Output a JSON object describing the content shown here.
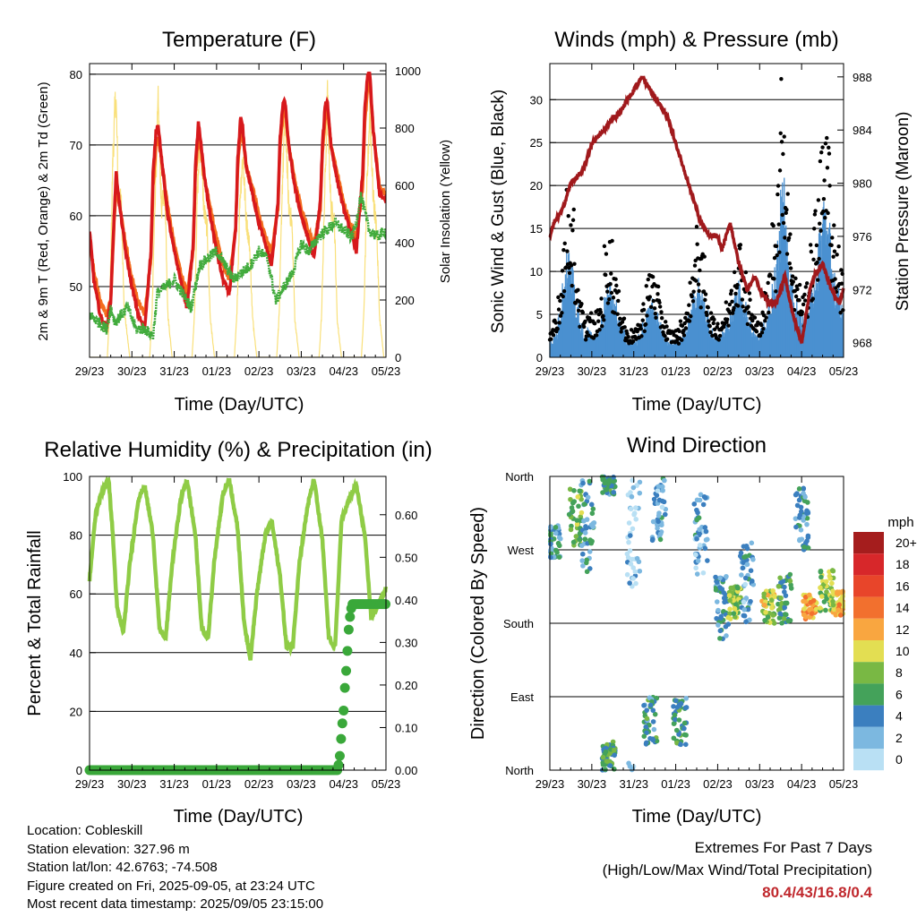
{
  "colors": {
    "temp_2m": "#d7191c",
    "temp_9m": "#f46d1e",
    "dewpoint": "#41ab3c",
    "solar": "#f9e07a",
    "wind": "#4a90d0",
    "gust": "#000000",
    "pressure": "#a0191c",
    "rh": "#8fcc46",
    "precip": "#3aa83a",
    "extremes": "#c0282d"
  },
  "info": {
    "location": "Location: Cobleskill",
    "elevation": "Station elevation: 327.96 m",
    "latlon": "Station lat/lon: 42.6763; -74.508",
    "created": "Figure created on Fri, 2025-09-05, at 23:24 UTC",
    "recent": "Most recent data timestamp: 2025/09/05 23:15:00"
  },
  "extremes": {
    "title": "Extremes For Past 7 Days",
    "subtitle": "(High/Low/Max Wind/Total Precipitation)",
    "values": "80.4/43/16.8/0.4"
  },
  "chart_data": [
    {
      "type": "line",
      "title": "Temperature (F)",
      "xlabel": "Time (Day/UTC)",
      "ylabel": "2m & 9m T (Red, Orange) & 2m Td (Green)",
      "y2label": "Solar Insolation (Yellow)",
      "x_ticks": [
        "29/23",
        "30/23",
        "31/23",
        "01/23",
        "02/23",
        "03/23",
        "04/23",
        "05/23"
      ],
      "y_ticks": [
        "50",
        "60",
        "70",
        "80"
      ],
      "y2_ticks": [
        "0",
        "200",
        "400",
        "600",
        "800",
        "1000"
      ],
      "ylim": [
        40,
        81.5
      ],
      "y2lim": [
        0,
        1025
      ],
      "x_days": [
        0,
        7
      ],
      "grid": "horizontal at labeled ticks",
      "series": [
        {
          "key": "t2m",
          "x": [
            0,
            0.1,
            0.25,
            0.4,
            0.5,
            0.58,
            0.63,
            0.7,
            0.85,
            1.0,
            1.15,
            1.3,
            1.45,
            1.5,
            1.57,
            1.62,
            1.7,
            1.85,
            2.0,
            2.15,
            2.3,
            2.45,
            2.5,
            2.57,
            2.62,
            2.7,
            2.85,
            3.0,
            3.15,
            3.3,
            3.45,
            3.5,
            3.57,
            3.62,
            3.7,
            3.85,
            4.0,
            4.15,
            4.3,
            4.45,
            4.5,
            4.57,
            4.62,
            4.7,
            4.85,
            5.0,
            5.15,
            5.3,
            5.45,
            5.5,
            5.57,
            5.62,
            5.7,
            5.85,
            6.0,
            6.15,
            6.3,
            6.45,
            6.5,
            6.57,
            6.62,
            6.7,
            6.85,
            7.0
          ],
          "y": [
            58,
            51,
            46,
            44,
            48,
            60,
            66,
            62,
            55,
            50,
            46,
            44,
            55,
            66,
            72,
            73,
            68,
            60,
            55,
            51,
            47,
            56,
            67,
            73,
            71,
            66,
            60,
            55,
            51,
            49,
            58,
            68,
            74,
            72,
            67,
            63,
            59,
            56,
            53,
            62,
            71,
            76,
            76,
            70,
            64,
            60,
            57,
            54,
            62,
            70,
            76,
            76,
            70,
            65,
            61,
            58,
            55,
            66,
            75,
            80,
            80,
            72,
            63,
            62
          ]
        },
        {
          "key": "t9m",
          "x": [
            0,
            0.1,
            0.25,
            0.4,
            0.5,
            0.58,
            0.63,
            0.7,
            0.85,
            1.0,
            1.15,
            1.3,
            1.45,
            1.5,
            1.57,
            1.62,
            1.7,
            1.85,
            2.0,
            2.15,
            2.3,
            2.45,
            2.5,
            2.57,
            2.62,
            2.7,
            2.85,
            3.0,
            3.15,
            3.3,
            3.45,
            3.5,
            3.57,
            3.62,
            3.7,
            3.85,
            4.0,
            4.15,
            4.3,
            4.45,
            4.5,
            4.57,
            4.62,
            4.7,
            4.85,
            5.0,
            5.15,
            5.3,
            5.45,
            5.5,
            5.57,
            5.62,
            5.7,
            5.85,
            6.0,
            6.15,
            6.3,
            6.45,
            6.5,
            6.57,
            6.62,
            6.7,
            6.85,
            7.0
          ],
          "y": [
            57,
            52,
            48,
            46,
            48,
            59,
            64,
            62,
            56,
            51,
            48,
            46,
            54,
            64,
            70,
            71,
            68,
            61,
            56,
            52,
            49,
            55,
            66,
            71,
            70,
            66,
            61,
            57,
            53,
            51,
            58,
            67,
            72,
            71,
            67,
            64,
            60,
            57,
            55,
            61,
            70,
            74,
            75,
            70,
            65,
            61,
            58,
            56,
            61,
            69,
            74,
            75,
            70,
            66,
            62,
            59,
            57,
            64,
            73,
            78,
            79,
            72,
            64,
            63
          ]
        },
        {
          "key": "td",
          "x": [
            0,
            0.2,
            0.4,
            0.5,
            0.6,
            0.75,
            0.9,
            1.1,
            1.3,
            1.5,
            1.6,
            1.8,
            2.0,
            2.2,
            2.4,
            2.6,
            2.8,
            3.0,
            3.2,
            3.4,
            3.6,
            3.8,
            4.0,
            4.2,
            4.4,
            4.6,
            4.8,
            5.0,
            5.2,
            5.4,
            5.6,
            5.8,
            6.0,
            6.2,
            6.3,
            6.4,
            6.6,
            6.8,
            7.0
          ],
          "y": [
            46,
            45,
            44,
            47,
            45,
            46,
            47,
            44,
            44,
            43,
            49,
            50,
            51,
            49,
            47,
            53,
            54,
            55,
            53,
            51,
            52,
            53,
            55,
            54,
            48,
            50,
            52,
            56,
            55,
            57,
            58,
            59,
            58,
            57,
            59,
            63,
            58,
            57,
            58
          ]
        },
        {
          "key": "solar",
          "x": [
            0,
            0.42,
            0.48,
            0.55,
            0.62,
            0.68,
            0.75,
            0.82,
            0.95,
            1.42,
            1.48,
            1.55,
            1.62,
            1.7,
            1.78,
            1.85,
            1.95,
            2.42,
            2.48,
            2.55,
            2.62,
            2.7,
            2.78,
            2.85,
            2.95,
            3.42,
            3.48,
            3.55,
            3.62,
            3.7,
            3.78,
            3.85,
            3.95,
            4.42,
            4.48,
            4.55,
            4.62,
            4.7,
            4.78,
            4.85,
            4.95,
            5.42,
            5.48,
            5.55,
            5.62,
            5.7,
            5.78,
            5.85,
            5.95,
            6.42,
            6.48,
            6.55,
            6.62,
            6.7,
            6.78,
            6.85,
            6.95,
            7.0
          ],
          "y": [
            0,
            0,
            200,
            750,
            1000,
            620,
            580,
            180,
            0,
            0,
            180,
            620,
            950,
            560,
            640,
            160,
            0,
            0,
            170,
            640,
            820,
            560,
            480,
            150,
            0,
            0,
            160,
            600,
            760,
            520,
            420,
            150,
            0,
            0,
            170,
            640,
            920,
            580,
            500,
            140,
            0,
            0,
            160,
            600,
            980,
            560,
            520,
            140,
            0,
            0,
            170,
            640,
            940,
            600,
            480,
            150,
            0,
            0
          ]
        }
      ]
    },
    {
      "type": "scatter",
      "title": "Winds (mph) & Pressure (mb)",
      "xlabel": "Time (Day/UTC)",
      "ylabel": "Sonic Wind & Gust (Blue, Black)",
      "y2label": "Station Pressure (Maroon)",
      "x_ticks": [
        "29/23",
        "30/23",
        "31/23",
        "01/23",
        "02/23",
        "03/23",
        "04/23",
        "05/23"
      ],
      "y_ticks": [
        "0",
        "5",
        "10",
        "15",
        "20",
        "25",
        "30"
      ],
      "y2_ticks": [
        "968",
        "972",
        "976",
        "980",
        "984",
        "988"
      ],
      "ylim": [
        0,
        34.2
      ],
      "y2lim": [
        966.9,
        989
      ],
      "grid": "horizontal at labeled ticks",
      "gust_by_day": [
        [
          3,
          4,
          8,
          14,
          18,
          16,
          10,
          6,
          4,
          5
        ],
        [
          4,
          5,
          7,
          12,
          13,
          10,
          7,
          5,
          3,
          3
        ],
        [
          3,
          4,
          6,
          9,
          10,
          8,
          6,
          4,
          3,
          3
        ],
        [
          3,
          4,
          5,
          8,
          12,
          14,
          11,
          8,
          5,
          4
        ],
        [
          4,
          5,
          6,
          9,
          12,
          13,
          10,
          7,
          5,
          4
        ],
        [
          5,
          7,
          10,
          15,
          22,
          30,
          22,
          14,
          10,
          8
        ],
        [
          7,
          9,
          12,
          16,
          22,
          28,
          24,
          16,
          12,
          10
        ]
      ],
      "pressure": {
        "x": [
          0,
          0.1,
          0.3,
          0.5,
          0.8,
          1.0,
          1.3,
          1.5,
          1.6,
          1.8,
          2.0,
          2.2,
          2.4,
          2.6,
          2.8,
          3.0,
          3.2,
          3.4,
          3.6,
          3.8,
          4.0,
          4.1,
          4.3,
          4.5,
          4.7,
          4.9,
          5.0,
          5.2,
          5.4,
          5.6,
          5.8,
          6.0,
          6.2,
          6.3,
          6.5,
          6.7,
          6.9,
          7.0
        ],
        "y": [
          976,
          977,
          978,
          980,
          981,
          983,
          984,
          985,
          985,
          986,
          987,
          988,
          987,
          986,
          985,
          983,
          981,
          979,
          977,
          976,
          976,
          975,
          977,
          974,
          972,
          973,
          972,
          971,
          971,
          973,
          970,
          968,
          972,
          973,
          974,
          972,
          971,
          972
        ]
      }
    },
    {
      "type": "line",
      "title": "Relative Humidity (%) & Precipitation (in)",
      "xlabel": "Time (Day/UTC)",
      "ylabel": "Percent & Total Rainfall",
      "x_ticks": [
        "29/23",
        "30/23",
        "31/23",
        "01/23",
        "02/23",
        "03/23",
        "04/23",
        "05/23"
      ],
      "y_ticks": [
        "0",
        "20",
        "40",
        "60",
        "80",
        "100"
      ],
      "y2_ticks": [
        "0.00",
        "0.10",
        "0.20",
        "0.30",
        "0.40",
        "0.50",
        "0.60"
      ],
      "ylim": [
        0,
        100
      ],
      "y2lim": [
        0,
        0.69
      ],
      "grid": "horizontal at labeled ticks",
      "series": [
        {
          "key": "rh",
          "x": [
            0,
            0.15,
            0.3,
            0.45,
            0.55,
            0.65,
            0.8,
            0.95,
            1.15,
            1.3,
            1.5,
            1.65,
            1.8,
            1.95,
            2.15,
            2.3,
            2.5,
            2.65,
            2.8,
            2.95,
            3.15,
            3.3,
            3.5,
            3.65,
            3.8,
            3.95,
            4.15,
            4.3,
            4.5,
            4.65,
            4.8,
            4.95,
            5.15,
            5.3,
            5.5,
            5.65,
            5.8,
            5.95,
            6.15,
            6.3,
            6.5,
            6.65,
            6.8,
            6.95,
            7.0
          ],
          "y": [
            65,
            88,
            95,
            99,
            80,
            55,
            47,
            70,
            92,
            97,
            80,
            48,
            45,
            70,
            92,
            99,
            80,
            48,
            45,
            72,
            94,
            99,
            82,
            50,
            38,
            60,
            80,
            85,
            66,
            42,
            42,
            70,
            90,
            99,
            78,
            45,
            42,
            85,
            93,
            97,
            80,
            52,
            56,
            60,
            62
          ]
        },
        {
          "key": "precip",
          "x": [
            0,
            5.85,
            5.9,
            5.93,
            5.96,
            6.0,
            6.02,
            6.05,
            6.08,
            6.1,
            6.12,
            6.15,
            6.18,
            6.2,
            7.0
          ],
          "y": [
            0,
            0,
            0.02,
            0.06,
            0.1,
            0.14,
            0.18,
            0.22,
            0.26,
            0.3,
            0.33,
            0.36,
            0.38,
            0.39,
            0.39
          ]
        }
      ]
    },
    {
      "type": "scatter",
      "title": "Wind Direction",
      "xlabel": "Time (Day/UTC)",
      "ylabel": "Direction (Colored By Speed)",
      "x_ticks": [
        "29/23",
        "30/23",
        "31/23",
        "01/23",
        "02/23",
        "03/23",
        "04/23",
        "05/23"
      ],
      "y_ticks": [
        "North",
        "East",
        "South",
        "West",
        "North"
      ],
      "ylim": [
        0,
        360
      ],
      "legend": {
        "title": "mph",
        "labels": [
          "20+",
          "18",
          "16",
          "14",
          "12",
          "10",
          "8",
          "6",
          "4",
          "2",
          "0"
        ],
        "colors": [
          "#a51d1d",
          "#d7272a",
          "#e8452a",
          "#f2702e",
          "#f9a640",
          "#e3de52",
          "#79b844",
          "#44a25a",
          "#3b7fbf",
          "#7cb8e0",
          "#b9e0f4"
        ],
        "placement": "right"
      },
      "clusters": [
        {
          "t": 0.1,
          "dir": 280,
          "spread": 20,
          "speed": 4
        },
        {
          "t": 0.6,
          "dir": 310,
          "spread": 35,
          "speed": 7
        },
        {
          "t": 0.9,
          "dir": 300,
          "spread": 60,
          "speed": 4
        },
        {
          "t": 1.4,
          "dir": 350,
          "spread": 12,
          "speed": 5
        },
        {
          "t": 1.4,
          "dir": 20,
          "spread": 15,
          "speed": 6
        },
        {
          "t": 2.0,
          "dir": 300,
          "spread": 80,
          "speed": 1
        },
        {
          "t": 2.4,
          "dir": 60,
          "spread": 30,
          "speed": 5
        },
        {
          "t": 2.6,
          "dir": 320,
          "spread": 40,
          "speed": 3
        },
        {
          "t": 3.1,
          "dir": 60,
          "spread": 30,
          "speed": 5
        },
        {
          "t": 3.6,
          "dir": 290,
          "spread": 50,
          "speed": 3
        },
        {
          "t": 4.1,
          "dir": 200,
          "spread": 40,
          "speed": 4
        },
        {
          "t": 4.4,
          "dir": 205,
          "spread": 20,
          "speed": 8
        },
        {
          "t": 4.7,
          "dir": 230,
          "spread": 50,
          "speed": 3
        },
        {
          "t": 5.2,
          "dir": 200,
          "spread": 20,
          "speed": 9
        },
        {
          "t": 5.6,
          "dir": 210,
          "spread": 30,
          "speed": 6
        },
        {
          "t": 6.0,
          "dir": 310,
          "spread": 40,
          "speed": 4
        },
        {
          "t": 6.2,
          "dir": 200,
          "spread": 15,
          "speed": 12
        },
        {
          "t": 6.6,
          "dir": 220,
          "spread": 25,
          "speed": 8
        },
        {
          "t": 6.9,
          "dir": 205,
          "spread": 15,
          "speed": 11
        }
      ]
    }
  ]
}
